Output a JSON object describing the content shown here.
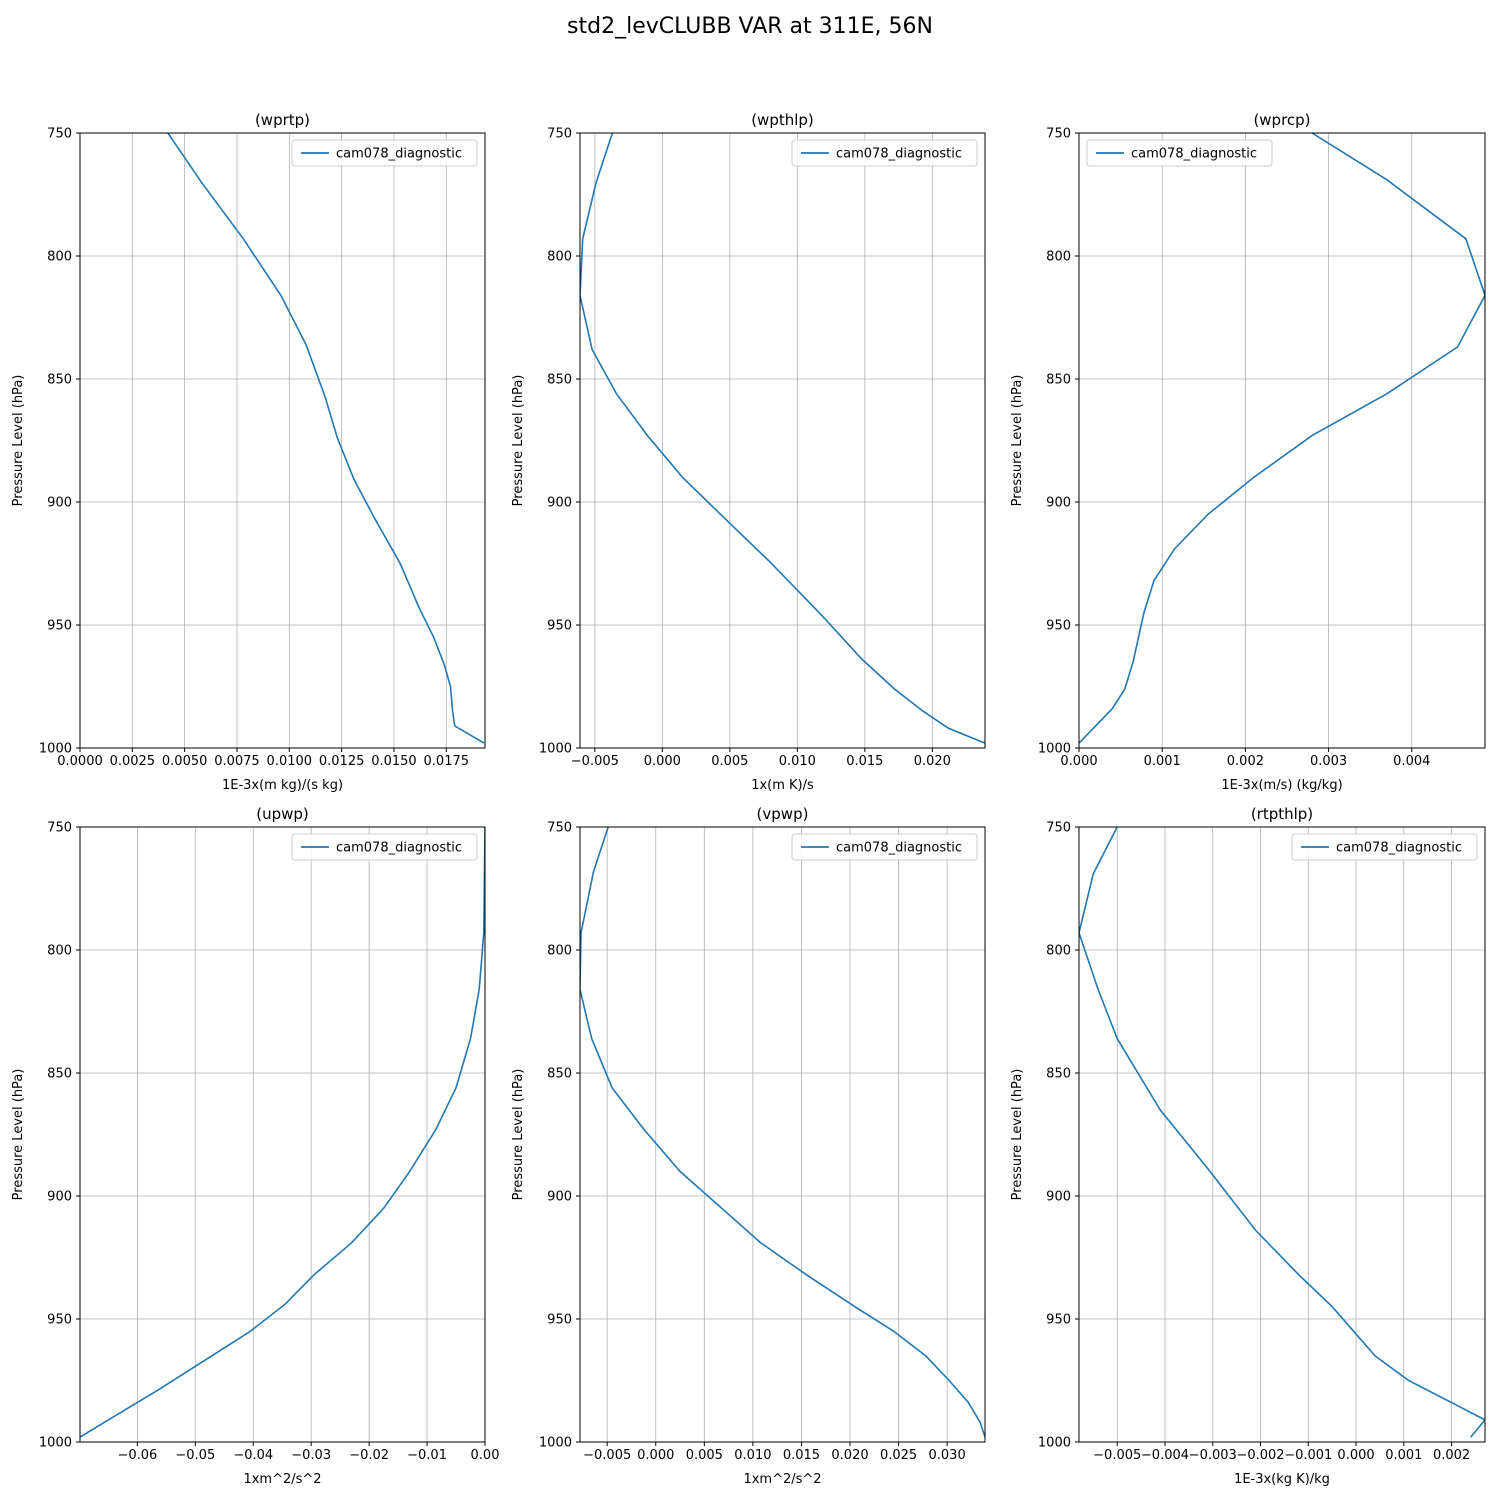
{
  "figure": {
    "title": "std2_levCLUBB VAR at 311E, 56N"
  },
  "chart_data": [
    {
      "type": "line",
      "title": "(wprtp)",
      "xlabel": "1E-3x(m kg)/(s kg)",
      "ylabel": "Pressure Level (hPa)",
      "xlim": [
        0.0,
        0.01935
      ],
      "ylim": [
        1000,
        750
      ],
      "y_inverted": true,
      "xticks": [
        0.0,
        0.0025,
        0.005,
        0.0075,
        0.01,
        0.0125,
        0.015,
        0.0175
      ],
      "xtick_labels": [
        "0.0000",
        "0.0025",
        "0.0050",
        "0.0075",
        "0.0100",
        "0.0125",
        "0.0150",
        "0.0175"
      ],
      "yticks": [
        750,
        800,
        850,
        900,
        950,
        1000
      ],
      "ytick_labels": [
        "750",
        "800",
        "850",
        "900",
        "950",
        "1000"
      ],
      "grid": true,
      "legend": "top-right",
      "series": [
        {
          "name": "cam078_diagnostic",
          "color": "#1f77b4",
          "x": [
            0.0042,
            0.0058,
            0.0078,
            0.0096,
            0.0108,
            0.0117,
            0.0123,
            0.0131,
            0.0141,
            0.0153,
            0.0162,
            0.0169,
            0.0174,
            0.0177,
            0.0178,
            0.0179,
            0.0193
          ],
          "y": [
            750,
            770,
            793,
            816,
            836,
            857,
            874,
            891,
            907,
            925,
            943,
            955,
            966,
            975,
            985,
            991,
            998
          ]
        }
      ]
    },
    {
      "type": "line",
      "title": "(wpthlp)",
      "xlabel": "1x(m K)/s",
      "ylabel": "Pressure Level (hPa)",
      "xlim": [
        -0.0061,
        0.0239
      ],
      "ylim": [
        1000,
        750
      ],
      "y_inverted": true,
      "xticks": [
        -0.005,
        0.0,
        0.005,
        0.01,
        0.015,
        0.02
      ],
      "xtick_labels": [
        "−0.005",
        "0.000",
        "0.005",
        "0.010",
        "0.015",
        "0.020"
      ],
      "yticks": [
        750,
        800,
        850,
        900,
        950,
        1000
      ],
      "ytick_labels": [
        "750",
        "800",
        "850",
        "900",
        "950",
        "1000"
      ],
      "grid": true,
      "legend": "top-right",
      "series": [
        {
          "name": "cam078_diagnostic",
          "color": "#1f77b4",
          "x": [
            -0.0037,
            -0.0049,
            -0.0059,
            -0.0061,
            -0.0052,
            -0.0034,
            -0.0011,
            0.0015,
            0.0045,
            0.0079,
            0.0118,
            0.0148,
            0.0172,
            0.0193,
            0.0212,
            0.0239
          ],
          "y": [
            750,
            770,
            793,
            816,
            838,
            856,
            873,
            890,
            906,
            924,
            946,
            964,
            976,
            985,
            992,
            998
          ]
        }
      ]
    },
    {
      "type": "line",
      "title": "(wprcp)",
      "xlabel": "1E-3x(m/s) (kg/kg)",
      "ylabel": "Pressure Level (hPa)",
      "xlim": [
        0.0,
        0.00488
      ],
      "ylim": [
        1000,
        750
      ],
      "y_inverted": true,
      "xticks": [
        0.0,
        0.001,
        0.002,
        0.003,
        0.004
      ],
      "xtick_labels": [
        "0.000",
        "0.001",
        "0.002",
        "0.003",
        "0.004"
      ],
      "yticks": [
        750,
        800,
        850,
        900,
        950,
        1000
      ],
      "ytick_labels": [
        "750",
        "800",
        "850",
        "900",
        "950",
        "1000"
      ],
      "grid": true,
      "legend": "top-left",
      "series": [
        {
          "name": "cam078_diagnostic",
          "color": "#1f77b4",
          "x": [
            0.0028,
            0.0037,
            0.00465,
            0.00488,
            0.00455,
            0.0037,
            0.0028,
            0.0021,
            0.00155,
            0.00115,
            0.0009,
            0.00078,
            0.00065,
            0.00055,
            0.0004,
            0.0002,
            0.0
          ],
          "y": [
            750,
            769,
            793,
            816,
            837,
            856,
            873,
            890,
            905,
            919,
            932,
            945,
            965,
            976,
            984,
            991,
            998
          ]
        }
      ]
    },
    {
      "type": "line",
      "title": "(upwp)",
      "xlabel": "1xm^2/s^2",
      "ylabel": "Pressure Level (hPa)",
      "xlim": [
        -0.0699,
        0.0
      ],
      "ylim": [
        1000,
        750
      ],
      "y_inverted": true,
      "xticks": [
        -0.06,
        -0.05,
        -0.04,
        -0.03,
        -0.02,
        -0.01,
        0.0
      ],
      "xtick_labels": [
        "−0.06",
        "−0.05",
        "−0.04",
        "−0.03",
        "−0.02",
        "−0.01",
        "0.00"
      ],
      "yticks": [
        750,
        800,
        850,
        900,
        950,
        1000
      ],
      "ytick_labels": [
        "750",
        "800",
        "850",
        "900",
        "950",
        "1000"
      ],
      "grid": true,
      "legend": "top-right",
      "series": [
        {
          "name": "cam078_diagnostic",
          "color": "#1f77b4",
          "x": [
            0.0,
            -0.0001,
            -0.0002,
            -0.001,
            -0.0025,
            -0.005,
            -0.0085,
            -0.013,
            -0.0175,
            -0.023,
            -0.0295,
            -0.0345,
            -0.0405,
            -0.0485,
            -0.0565,
            -0.065,
            -0.0699
          ],
          "y": [
            750,
            770,
            793,
            816,
            836,
            856,
            873,
            890,
            905,
            919,
            932,
            944,
            955,
            967,
            979,
            991,
            998
          ]
        }
      ]
    },
    {
      "type": "line",
      "title": "(vpwp)",
      "xlabel": "1xm^2/s^2",
      "ylabel": "Pressure Level (hPa)",
      "xlim": [
        -0.0078,
        0.0339
      ],
      "ylim": [
        1000,
        750
      ],
      "y_inverted": true,
      "xticks": [
        -0.005,
        0.0,
        0.005,
        0.01,
        0.015,
        0.02,
        0.025,
        0.03
      ],
      "xtick_labels": [
        "−0.005",
        "0.000",
        "0.005",
        "0.010",
        "0.015",
        "0.020",
        "0.025",
        "0.030"
      ],
      "yticks": [
        750,
        800,
        850,
        900,
        950,
        1000
      ],
      "ytick_labels": [
        "750",
        "800",
        "850",
        "900",
        "950",
        "1000"
      ],
      "grid": true,
      "legend": "top-right",
      "series": [
        {
          "name": "cam078_diagnostic",
          "color": "#1f77b4",
          "x": [
            -0.0049,
            -0.0064,
            -0.0077,
            -0.0078,
            -0.0066,
            -0.0045,
            -0.0012,
            0.0025,
            0.0068,
            0.0108,
            0.0155,
            0.0205,
            0.0245,
            0.0278,
            0.0302,
            0.0322,
            0.0334,
            0.0339
          ],
          "y": [
            750,
            768,
            793,
            816,
            836,
            856,
            873,
            890,
            905,
            919,
            932,
            945,
            955,
            965,
            975,
            984,
            992,
            998
          ]
        }
      ]
    },
    {
      "type": "line",
      "title": "(rtpthlp)",
      "xlabel": "1E-3x(kg K)/kg",
      "ylabel": "Pressure Level (hPa)",
      "xlim": [
        -0.0058,
        0.0027
      ],
      "ylim": [
        1000,
        750
      ],
      "y_inverted": true,
      "xticks": [
        -0.005,
        -0.004,
        -0.003,
        -0.002,
        -0.001,
        0.0,
        0.001,
        0.002
      ],
      "xtick_labels": [
        "−0.005",
        "−0.004",
        "−0.003",
        "−0.002",
        "−0.001",
        "0.000",
        "0.001",
        "0.002"
      ],
      "yticks": [
        750,
        800,
        850,
        900,
        950,
        1000
      ],
      "ytick_labels": [
        "750",
        "800",
        "850",
        "900",
        "950",
        "1000"
      ],
      "grid": true,
      "legend": "top-right",
      "series": [
        {
          "name": "cam078_diagnostic",
          "color": "#1f77b4",
          "x": [
            -0.005,
            -0.0055,
            -0.0058,
            -0.0054,
            -0.005,
            -0.0041,
            -0.0031,
            -0.0021,
            -0.0012,
            -0.0005,
            0.0004,
            0.0011,
            0.002,
            0.0027,
            0.0024
          ],
          "y": [
            750,
            769,
            793,
            816,
            836,
            865,
            889,
            914,
            932,
            945,
            965,
            975,
            984,
            991,
            998
          ]
        }
      ]
    }
  ]
}
